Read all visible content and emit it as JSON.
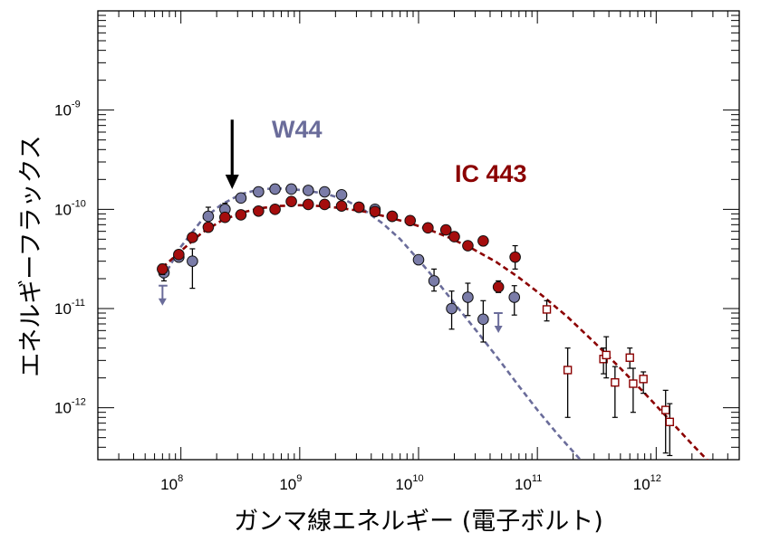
{
  "chart_data": {
    "type": "scatter",
    "xlabel": "ガンマ線エネルギー (電子ボルト)",
    "ylabel": "エネルギーフラックス",
    "xscale": "log",
    "yscale": "log",
    "xlim": [
      20000000.0,
      5000000000000.0
    ],
    "ylim": [
      3e-13,
      1e-08
    ],
    "x_ticks": [
      {
        "base": "10",
        "exp": "8",
        "value": 100000000.0
      },
      {
        "base": "10",
        "exp": "9",
        "value": 1000000000.0
      },
      {
        "base": "10",
        "exp": "10",
        "value": 10000000000.0
      },
      {
        "base": "10",
        "exp": "11",
        "value": 100000000000.0
      },
      {
        "base": "10",
        "exp": "12",
        "value": 1000000000000.0
      }
    ],
    "y_ticks": [
      {
        "base": "10",
        "exp": "-12",
        "value": 1e-12
      },
      {
        "base": "10",
        "exp": "-11",
        "value": 1e-11
      },
      {
        "base": "10",
        "exp": "-10",
        "value": 1e-10
      },
      {
        "base": "10",
        "exp": "-9",
        "value": 1e-09
      }
    ],
    "grid": false,
    "annotations": [
      {
        "type": "arrow",
        "x": 270000000.0,
        "y_from": 8e-10,
        "y_to": 1.6e-10
      }
    ],
    "series": [
      {
        "name": "W44",
        "color": "#6a6c9a",
        "marker_fill": "#7a7ca8",
        "points": [
          {
            "x": 72000000.0,
            "y": 2.3e-11,
            "ylo": 1.9e-11,
            "yhi": 2.7e-11
          },
          {
            "x": 96000000.0,
            "y": 3.3e-11,
            "ylo": 3e-11,
            "yhi": 3.6e-11
          },
          {
            "x": 125000000.0,
            "y": 3e-11,
            "ylo": 1.6e-11,
            "yhi": 4e-11
          },
          {
            "x": 170000000.0,
            "y": 8.5e-11,
            "ylo": 7e-11,
            "yhi": 1.05e-10
          },
          {
            "x": 235000000.0,
            "y": 1e-10,
            "ylo": 8.5e-11,
            "yhi": 1.15e-10
          },
          {
            "x": 320000000.0,
            "y": 1.3e-10
          },
          {
            "x": 450000000.0,
            "y": 1.5e-10
          },
          {
            "x": 620000000.0,
            "y": 1.6e-10
          },
          {
            "x": 850000000.0,
            "y": 1.6e-10
          },
          {
            "x": 1180000000.0,
            "y": 1.55e-10
          },
          {
            "x": 1620000000.0,
            "y": 1.5e-10
          },
          {
            "x": 2250000000.0,
            "y": 1.4e-10
          },
          {
            "x": 3150000000.0,
            "y": 1.05e-10
          },
          {
            "x": 4300000000.0,
            "y": 1e-10
          },
          {
            "x": 6000000000.0,
            "y": 8.5e-11
          },
          {
            "x": 10000000000.0,
            "y": 3.1e-11,
            "ylo": 2.8e-11,
            "yhi": 3.4e-11
          },
          {
            "x": 13500000000.0,
            "y": 1.9e-11,
            "ylo": 1.5e-11,
            "yhi": 2.5e-11
          },
          {
            "x": 19000000000.0,
            "y": 1e-11,
            "ylo": 6.2e-12,
            "yhi": 1.5e-11
          },
          {
            "x": 26000000000.0,
            "y": 1.3e-11,
            "ylo": 8.5e-12,
            "yhi": 1.8e-11
          },
          {
            "x": 35000000000.0,
            "y": 7.8e-12,
            "ylo": 4.6e-12,
            "yhi": 1.2e-11
          },
          {
            "x": 64000000000.0,
            "y": 1.3e-11,
            "ylo": 8.6e-12,
            "yhi": 1.7e-11
          }
        ],
        "upper_limits": [
          {
            "x": 70000000.0,
            "y": 1.7e-11,
            "xlo": 65000000.0,
            "xhi": 77000000.0
          },
          {
            "x": 47000000000.0,
            "y": 9e-12,
            "xlo": 43000000000.0,
            "xhi": 51000000000.0
          }
        ],
        "model_curve": [
          {
            "x": 70000000.0,
            "y": 2e-11
          },
          {
            "x": 100000000.0,
            "y": 4.2e-11
          },
          {
            "x": 150000000.0,
            "y": 7.8e-11
          },
          {
            "x": 220000000.0,
            "y": 1.12e-10
          },
          {
            "x": 320000000.0,
            "y": 1.42e-10
          },
          {
            "x": 450000000.0,
            "y": 1.58e-10
          },
          {
            "x": 620000000.0,
            "y": 1.63e-10
          },
          {
            "x": 850000000.0,
            "y": 1.6e-10
          },
          {
            "x": 1200000000.0,
            "y": 1.53e-10
          },
          {
            "x": 1700000000.0,
            "y": 1.42e-10
          },
          {
            "x": 2400000000.0,
            "y": 1.25e-10
          },
          {
            "x": 3500000000.0,
            "y": 9.8e-11
          },
          {
            "x": 5000000000.0,
            "y": 7.2e-11
          },
          {
            "x": 7000000000.0,
            "y": 5e-11
          },
          {
            "x": 10000000000.0,
            "y": 3.1e-11
          },
          {
            "x": 15000000000.0,
            "y": 1.75e-11
          },
          {
            "x": 22000000000.0,
            "y": 9.8e-12
          },
          {
            "x": 32000000000.0,
            "y": 5.6e-12
          },
          {
            "x": 48000000000.0,
            "y": 3e-12
          },
          {
            "x": 70000000000.0,
            "y": 1.65e-12
          },
          {
            "x": 100000000000.0,
            "y": 9.5e-13
          },
          {
            "x": 150000000000.0,
            "y": 5.3e-13
          },
          {
            "x": 230000000000.0,
            "y": 3e-13
          }
        ]
      },
      {
        "name": "IC 443",
        "color": "#8b0000",
        "marker_fill": "#a50d0d",
        "points": [
          {
            "x": 70000000.0,
            "y": 2.5e-11,
            "ylo": 2.2e-11,
            "yhi": 2.8e-11
          },
          {
            "x": 96000000.0,
            "y": 3.5e-11,
            "ylo": 3.2e-11,
            "yhi": 3.8e-11
          },
          {
            "x": 125000000.0,
            "y": 5.2e-11,
            "ylo": 4.8e-11,
            "yhi": 5.6e-11
          },
          {
            "x": 170000000.0,
            "y": 6.6e-11
          },
          {
            "x": 235000000.0,
            "y": 8.3e-11
          },
          {
            "x": 320000000.0,
            "y": 8.8e-11
          },
          {
            "x": 450000000.0,
            "y": 9.6e-11
          },
          {
            "x": 620000000.0,
            "y": 1e-10
          },
          {
            "x": 850000000.0,
            "y": 1.2e-10
          },
          {
            "x": 1180000000.0,
            "y": 1.12e-10
          },
          {
            "x": 1620000000.0,
            "y": 1.12e-10
          },
          {
            "x": 2250000000.0,
            "y": 1.08e-10
          },
          {
            "x": 3150000000.0,
            "y": 1.05e-10
          },
          {
            "x": 4300000000.0,
            "y": 9.5e-11
          },
          {
            "x": 6000000000.0,
            "y": 8.5e-11
          },
          {
            "x": 8500000000.0,
            "y": 7.7e-11
          },
          {
            "x": 12000000000.0,
            "y": 6.5e-11
          },
          {
            "x": 17000000000.0,
            "y": 6.2e-11
          },
          {
            "x": 20000000000.0,
            "y": 5.3e-11,
            "ylo": 4.9e-11,
            "yhi": 5.9e-11
          },
          {
            "x": 26000000000.0,
            "y": 4.3e-11,
            "ylo": 3.9e-11,
            "yhi": 4.7e-11
          },
          {
            "x": 35000000000.0,
            "y": 4.8e-11,
            "ylo": 4.3e-11,
            "yhi": 5.3e-11
          },
          {
            "x": 47000000000.0,
            "y": 1.65e-11,
            "ylo": 1.45e-11,
            "yhi": 1.9e-11
          },
          {
            "x": 65000000000.0,
            "y": 3.3e-11,
            "ylo": 2.5e-11,
            "yhi": 4.3e-11
          }
        ],
        "points_open": [
          {
            "x": 120000000000.0,
            "y": 9.8e-12,
            "ylo": 7.5e-12,
            "yhi": 1.2e-11
          },
          {
            "x": 180000000000.0,
            "y": 2.4e-12,
            "ylo": 8e-13,
            "yhi": 4e-12
          },
          {
            "x": 360000000000.0,
            "y": 3.1e-12,
            "ylo": 2.2e-12,
            "yhi": 4e-12
          },
          {
            "x": 380000000000.0,
            "y": 3.4e-12,
            "ylo": 2e-12,
            "yhi": 5.2e-12
          },
          {
            "x": 450000000000.0,
            "y": 1.8e-12,
            "ylo": 8e-13,
            "yhi": 2.6e-12
          },
          {
            "x": 600000000000.0,
            "y": 3.2e-12,
            "ylo": 2.5e-12,
            "yhi": 4e-12
          },
          {
            "x": 640000000000.0,
            "y": 1.75e-12,
            "ylo": 9e-13,
            "yhi": 2.5e-12
          },
          {
            "x": 780000000000.0,
            "y": 1.95e-12,
            "ylo": 1.4e-12,
            "yhi": 2.3e-12
          },
          {
            "x": 1200000000000.0,
            "y": 9.5e-13,
            "ylo": 3.5e-13,
            "yhi": 1.5e-12
          },
          {
            "x": 1300000000000.0,
            "y": 7.2e-13,
            "ylo": 3.3e-13,
            "yhi": 1.1e-12
          }
        ],
        "model_curve": [
          {
            "x": 70000000.0,
            "y": 2.6e-11
          },
          {
            "x": 100000000.0,
            "y": 3.8e-11
          },
          {
            "x": 150000000.0,
            "y": 5.8e-11
          },
          {
            "x": 220000000.0,
            "y": 7.7e-11
          },
          {
            "x": 320000000.0,
            "y": 9.2e-11
          },
          {
            "x": 450000000.0,
            "y": 1.02e-10
          },
          {
            "x": 650000000.0,
            "y": 1.08e-10
          },
          {
            "x": 1000000000.0,
            "y": 1.1e-10
          },
          {
            "x": 1500000000.0,
            "y": 1.08e-10
          },
          {
            "x": 2200000000.0,
            "y": 1.03e-10
          },
          {
            "x": 3500000000.0,
            "y": 9.5e-11
          },
          {
            "x": 5000000000.0,
            "y": 8.6e-11
          },
          {
            "x": 8000000000.0,
            "y": 7.4e-11
          },
          {
            "x": 12000000000.0,
            "y": 6.3e-11
          },
          {
            "x": 18000000000.0,
            "y": 5.2e-11
          },
          {
            "x": 28000000000.0,
            "y": 4.05e-11
          },
          {
            "x": 45000000000.0,
            "y": 2.95e-11
          },
          {
            "x": 70000000000.0,
            "y": 2.05e-11
          },
          {
            "x": 110000000000.0,
            "y": 1.35e-11
          },
          {
            "x": 180000000000.0,
            "y": 8.2e-12
          },
          {
            "x": 300000000000.0,
            "y": 4.6e-12
          },
          {
            "x": 500000000000.0,
            "y": 2.5e-12
          },
          {
            "x": 800000000000.0,
            "y": 1.4e-12
          },
          {
            "x": 1300000000000.0,
            "y": 7.5e-13
          },
          {
            "x": 2000000000000.0,
            "y": 4.3e-13
          },
          {
            "x": 3000000000000.0,
            "y": 2.6e-13
          }
        ]
      }
    ]
  }
}
